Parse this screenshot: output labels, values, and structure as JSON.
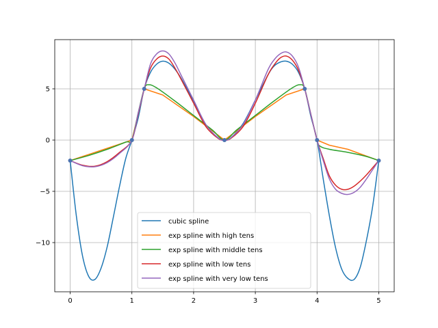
{
  "chart_data": {
    "type": "line",
    "title": "",
    "xlabel": "",
    "ylabel": "",
    "xlim": [
      -0.25,
      5.25
    ],
    "ylim": [
      -14.8,
      9.8
    ],
    "grid": true,
    "legend_position": "lower-center",
    "x_ticks": [
      0,
      1,
      2,
      3,
      4,
      5
    ],
    "x_tick_labels": [
      "0",
      "1",
      "2",
      "3",
      "4",
      "5"
    ],
    "y_ticks": [
      -10,
      -5,
      0,
      5
    ],
    "y_tick_labels": [
      "−10",
      "−5",
      "0",
      "5"
    ],
    "knots": {
      "x": [
        0,
        1,
        1.2,
        2.5,
        3.8,
        4,
        5
      ],
      "y": [
        -2,
        0,
        5,
        0,
        5,
        0,
        -2
      ],
      "color": "#4c72b0"
    },
    "series": [
      {
        "name": "cubic spline",
        "color": "#1f77b4",
        "x": [
          0,
          0.1,
          0.2,
          0.3,
          0.4,
          0.5,
          0.6,
          0.7,
          0.8,
          0.9,
          1.0,
          1.1,
          1.2,
          1.3,
          1.4,
          1.5,
          1.6,
          1.7,
          1.8,
          2.0,
          2.2,
          2.4,
          2.5,
          2.6,
          2.8,
          3.0,
          3.2,
          3.3,
          3.4,
          3.5,
          3.6,
          3.7,
          3.8,
          3.9,
          4.0,
          4.1,
          4.2,
          4.3,
          4.4,
          4.5,
          4.6,
          4.7,
          4.8,
          4.9,
          5.0
        ],
        "y": [
          -2.0,
          -7.4,
          -11.3,
          -13.3,
          -13.6,
          -12.5,
          -10.4,
          -7.5,
          -4.5,
          -1.8,
          0.0,
          2.1,
          5.0,
          6.6,
          7.4,
          7.7,
          7.5,
          6.9,
          6.0,
          3.8,
          1.5,
          0.2,
          0.0,
          0.2,
          1.6,
          3.9,
          6.3,
          7.2,
          7.6,
          7.7,
          7.4,
          6.6,
          5.0,
          2.3,
          0.0,
          -3.8,
          -7.4,
          -10.5,
          -12.6,
          -13.5,
          -13.6,
          -12.4,
          -9.8,
          -6.5,
          -2.0
        ]
      },
      {
        "name": "exp spline with high tens",
        "color": "#ff7f0e",
        "x": [
          0,
          0.5,
          1.0,
          1.2,
          1.5,
          2.0,
          2.5,
          3.0,
          3.5,
          3.8,
          4.0,
          4.2,
          4.5,
          5.0
        ],
        "y": [
          -2.0,
          -1.0,
          0.0,
          5.0,
          4.4,
          2.3,
          0.0,
          2.3,
          4.4,
          5.0,
          0.0,
          -0.5,
          -0.9,
          -2.0
        ]
      },
      {
        "name": "exp spline with middle tens",
        "color": "#2ca02c",
        "x": [
          0,
          0.3,
          0.6,
          0.9,
          1.0,
          1.1,
          1.2,
          1.27,
          1.4,
          1.7,
          2.0,
          2.3,
          2.5,
          2.7,
          3.0,
          3.3,
          3.6,
          3.73,
          3.8,
          3.9,
          4.0,
          4.05,
          4.2,
          4.5,
          4.8,
          5.0
        ],
        "y": [
          -2.0,
          -1.5,
          -0.9,
          -0.2,
          0.0,
          2.6,
          5.0,
          5.4,
          5.1,
          3.8,
          2.4,
          1.0,
          0.0,
          1.0,
          2.4,
          3.8,
          5.1,
          5.4,
          5.0,
          2.5,
          0.0,
          -0.6,
          -0.9,
          -1.2,
          -1.6,
          -2.0
        ]
      },
      {
        "name": "exp spline with low tens",
        "color": "#d62728",
        "x": [
          0,
          0.2,
          0.4,
          0.6,
          0.8,
          1.0,
          1.1,
          1.2,
          1.3,
          1.4,
          1.5,
          1.6,
          1.7,
          1.8,
          2.0,
          2.2,
          2.4,
          2.5,
          2.6,
          2.8,
          3.0,
          3.2,
          3.3,
          3.4,
          3.5,
          3.6,
          3.7,
          3.8,
          3.9,
          4.0,
          4.1,
          4.2,
          4.3,
          4.4,
          4.5,
          4.6,
          4.7,
          4.8,
          4.9,
          5.0
        ],
        "y": [
          -2.0,
          -2.45,
          -2.55,
          -2.1,
          -1.2,
          0.0,
          2.5,
          5.0,
          7.0,
          7.9,
          8.2,
          7.9,
          7.0,
          5.9,
          3.6,
          1.3,
          0.15,
          0.0,
          0.15,
          1.3,
          3.6,
          6.3,
          7.3,
          8.0,
          8.2,
          7.8,
          6.8,
          5.0,
          2.5,
          0.0,
          -1.8,
          -3.5,
          -4.4,
          -4.8,
          -4.8,
          -4.5,
          -4.0,
          -3.4,
          -2.7,
          -2.0
        ]
      },
      {
        "name": "exp spline with very low tens",
        "color": "#9467bd",
        "x": [
          0,
          0.2,
          0.4,
          0.6,
          0.8,
          1.0,
          1.1,
          1.2,
          1.3,
          1.4,
          1.5,
          1.6,
          1.7,
          1.8,
          2.0,
          2.2,
          2.4,
          2.5,
          2.6,
          2.8,
          3.0,
          3.2,
          3.3,
          3.4,
          3.5,
          3.6,
          3.7,
          3.8,
          3.9,
          4.0,
          4.1,
          4.2,
          4.3,
          4.4,
          4.5,
          4.6,
          4.7,
          4.8,
          4.9,
          5.0
        ],
        "y": [
          -2.0,
          -2.5,
          -2.6,
          -2.2,
          -1.3,
          0.0,
          2.6,
          5.0,
          7.4,
          8.4,
          8.7,
          8.4,
          7.5,
          6.3,
          3.9,
          1.5,
          0.2,
          0.0,
          0.2,
          1.5,
          3.9,
          6.8,
          7.8,
          8.4,
          8.6,
          8.2,
          7.1,
          5.0,
          2.5,
          0.0,
          -2.0,
          -3.8,
          -4.8,
          -5.2,
          -5.3,
          -5.1,
          -4.6,
          -3.8,
          -2.9,
          -2.0
        ]
      }
    ]
  }
}
